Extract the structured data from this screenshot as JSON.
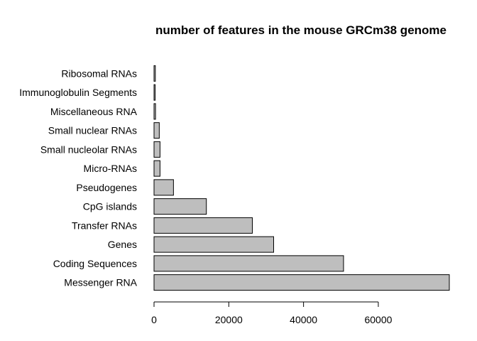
{
  "chart_data": {
    "type": "bar",
    "orientation": "horizontal",
    "title": "number of features in the mouse GRCm38 genome",
    "xlabel": "",
    "ylabel": "",
    "categories": [
      "Messenger RNA",
      "Coding Sequences",
      "Genes",
      "Transfer RNAs",
      "CpG islands",
      "Pseudogenes",
      "Micro-RNAs",
      "Small nucleolar RNAs",
      "Small nuclear RNAs",
      "Miscellaneous RNA",
      "Immunoglobulin Segments",
      "Ribosomal RNAs"
    ],
    "values": [
      79000,
      50700,
      32000,
      26300,
      14000,
      5200,
      1600,
      1600,
      1400,
      400,
      300,
      350
    ],
    "xlim": [
      0,
      79000
    ],
    "xticks": [
      0,
      20000,
      40000,
      60000
    ],
    "xtick_labels": [
      "0",
      "20000",
      "40000",
      "60000"
    ],
    "bar_color": "#bebebe",
    "bar_border_color": "#000000",
    "grid": false,
    "legend": "none"
  }
}
